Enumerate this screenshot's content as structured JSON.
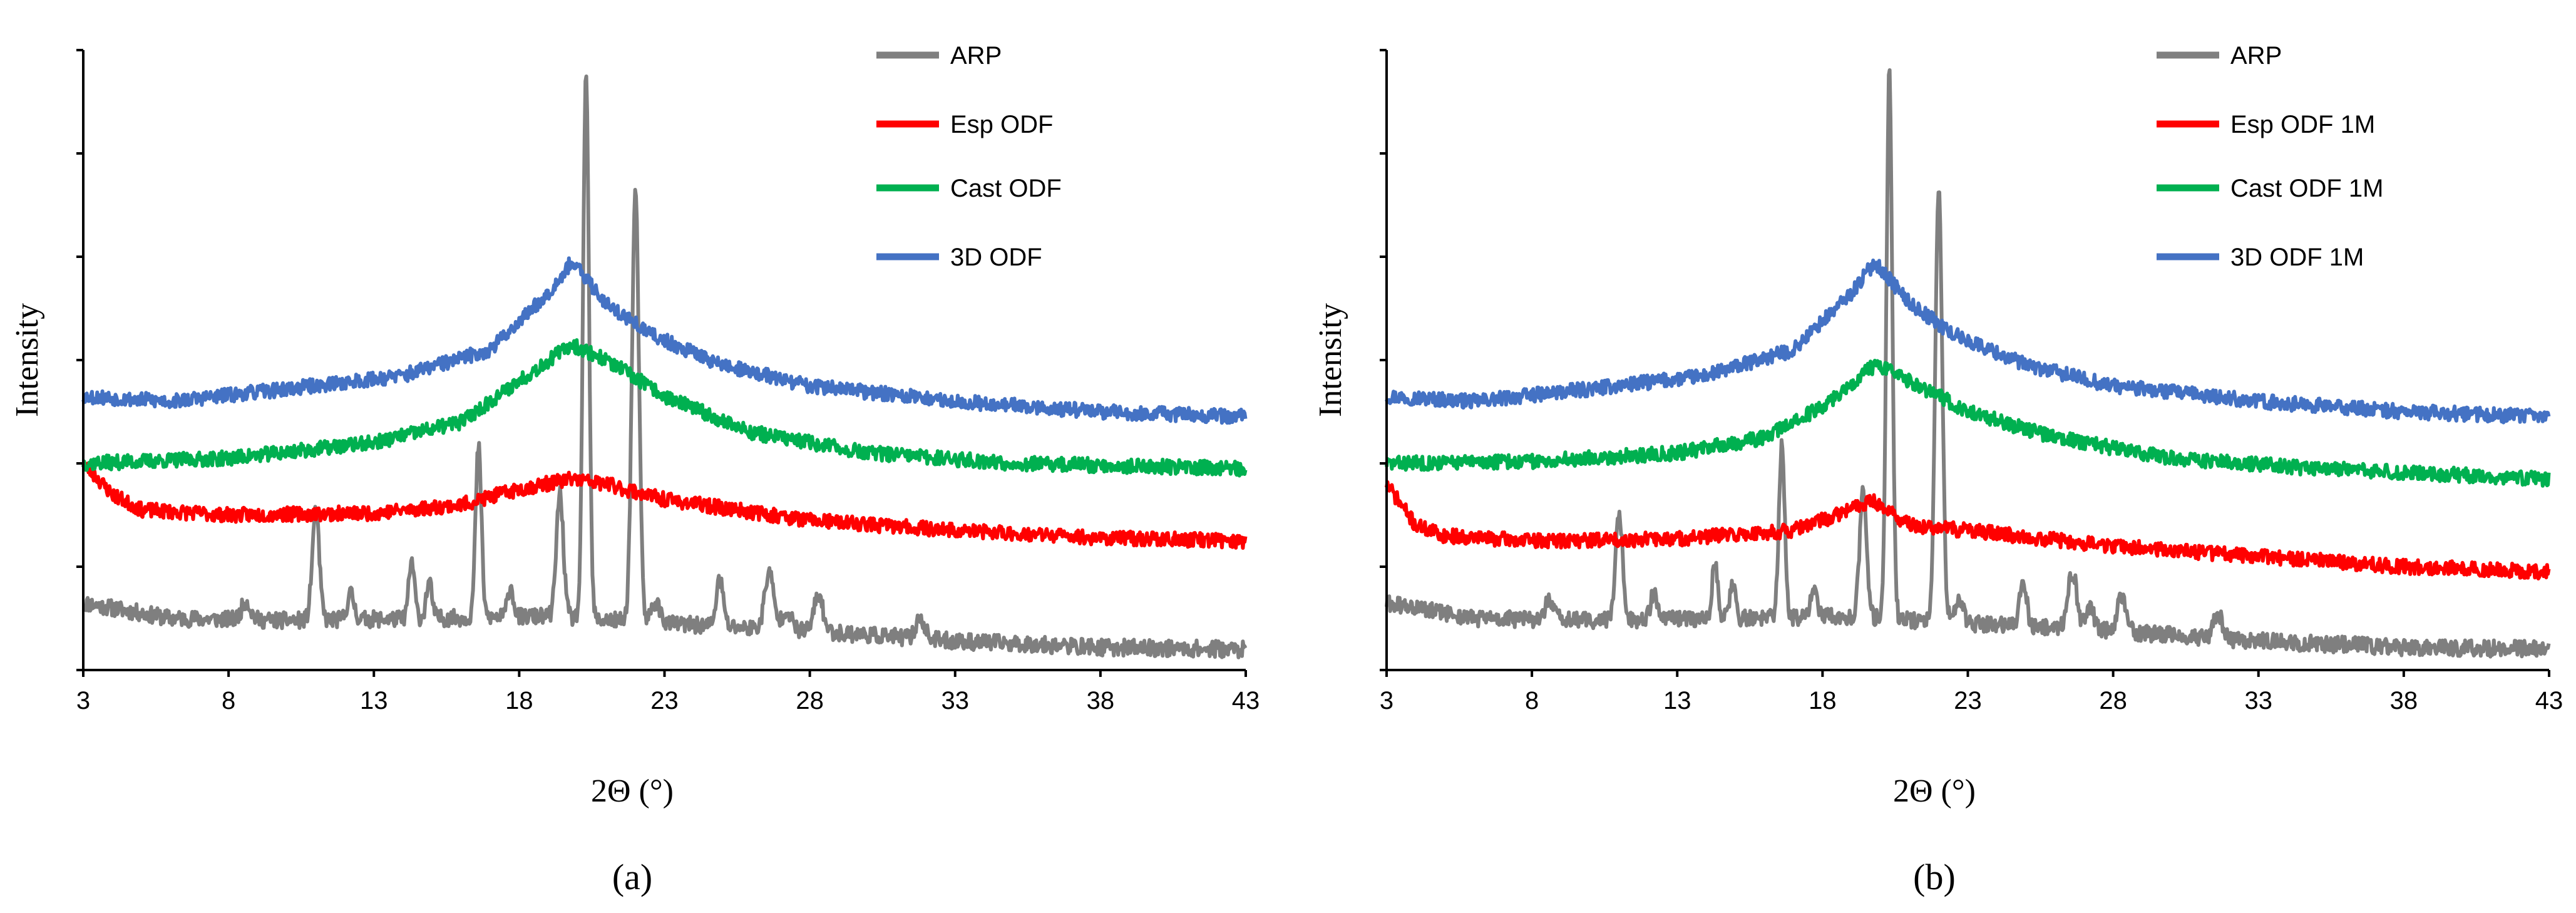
{
  "chart_data": [
    {
      "type": "line",
      "panel_label": "(a)",
      "xlabel": "2Θ (°)",
      "ylabel": "Intensity",
      "xlim": [
        3,
        43
      ],
      "ylim": [
        0,
        6
      ],
      "xticks": [
        3,
        8,
        13,
        18,
        23,
        28,
        33,
        38,
        43
      ],
      "yticks_shown": false,
      "legend_position": "top-right",
      "series": [
        {
          "name": "ARP",
          "color": "#7f7f7f",
          "noise": 0.08,
          "seed": 11,
          "baseline": [
            [
              3,
              0.65
            ],
            [
              6,
              0.5
            ],
            [
              10,
              0.48
            ],
            [
              15,
              0.5
            ],
            [
              19,
              0.52
            ],
            [
              23,
              0.45
            ],
            [
              28,
              0.38
            ],
            [
              33,
              0.28
            ],
            [
              38,
              0.22
            ],
            [
              43,
              0.2
            ]
          ],
          "peaks": [
            [
              8.6,
              0.18,
              0.15
            ],
            [
              11.0,
              1.05,
              0.12
            ],
            [
              12.2,
              0.25,
              0.12
            ],
            [
              14.3,
              0.55,
              0.1
            ],
            [
              14.9,
              0.35,
              0.1
            ],
            [
              16.6,
              1.65,
              0.1
            ],
            [
              17.7,
              0.3,
              0.1
            ],
            [
              19.4,
              1.2,
              0.12
            ],
            [
              20.3,
              5.3,
              0.1
            ],
            [
              22.0,
              4.15,
              0.12
            ],
            [
              22.7,
              0.2,
              0.15
            ],
            [
              24.9,
              0.45,
              0.12
            ],
            [
              26.6,
              0.55,
              0.15
            ],
            [
              27.2,
              0.2,
              0.15
            ],
            [
              28.3,
              0.35,
              0.15
            ],
            [
              31.8,
              0.2,
              0.15
            ]
          ]
        },
        {
          "name": "Esp ODF",
          "color": "#ff0000",
          "noise": 0.07,
          "seed": 23,
          "baseline": [
            [
              3,
              2.0
            ],
            [
              4,
              1.7
            ],
            [
              5,
              1.55
            ],
            [
              8,
              1.5
            ],
            [
              13,
              1.52
            ],
            [
              16,
              1.6
            ],
            [
              18,
              1.75
            ],
            [
              19.8,
              1.85
            ],
            [
              21,
              1.8
            ],
            [
              23,
              1.65
            ],
            [
              28,
              1.45
            ],
            [
              33,
              1.35
            ],
            [
              38,
              1.28
            ],
            [
              43,
              1.25
            ]
          ],
          "peaks": []
        },
        {
          "name": "Cast ODF",
          "color": "#00b050",
          "noise": 0.07,
          "seed": 37,
          "baseline": [
            [
              3,
              2.0
            ],
            [
              8,
              2.05
            ],
            [
              13,
              2.2
            ],
            [
              16,
              2.4
            ],
            [
              18,
              2.8
            ],
            [
              19.8,
              3.15
            ],
            [
              21,
              3.0
            ],
            [
              23,
              2.65
            ],
            [
              26,
              2.3
            ],
            [
              30,
              2.1
            ],
            [
              35,
              2.0
            ],
            [
              43,
              1.95
            ]
          ],
          "peaks": []
        },
        {
          "name": "3D ODF",
          "color": "#4472c4",
          "noise": 0.07,
          "seed": 53,
          "baseline": [
            [
              3,
              2.65
            ],
            [
              6,
              2.6
            ],
            [
              10,
              2.72
            ],
            [
              14,
              2.85
            ],
            [
              17,
              3.1
            ],
            [
              19.0,
              3.65
            ],
            [
              19.8,
              3.95
            ],
            [
              21,
              3.55
            ],
            [
              22.5,
              3.25
            ],
            [
              25,
              2.95
            ],
            [
              28,
              2.75
            ],
            [
              33,
              2.6
            ],
            [
              38,
              2.5
            ],
            [
              43,
              2.45
            ]
          ],
          "peaks": []
        }
      ]
    },
    {
      "type": "line",
      "panel_label": "(b)",
      "xlabel": "2Θ (°)",
      "ylabel": "Intensity",
      "xlim": [
        3,
        43
      ],
      "ylim": [
        0,
        6
      ],
      "xticks": [
        3,
        8,
        13,
        18,
        23,
        28,
        33,
        38,
        43
      ],
      "yticks_shown": false,
      "legend_position": "top-right",
      "series": [
        {
          "name": "ARP",
          "color": "#7f7f7f",
          "noise": 0.08,
          "seed": 61,
          "baseline": [
            [
              3,
              0.65
            ],
            [
              6,
              0.5
            ],
            [
              10,
              0.48
            ],
            [
              15,
              0.5
            ],
            [
              19,
              0.52
            ],
            [
              23,
              0.45
            ],
            [
              28,
              0.38
            ],
            [
              33,
              0.28
            ],
            [
              38,
              0.22
            ],
            [
              43,
              0.2
            ]
          ],
          "peaks": [
            [
              8.6,
              0.18,
              0.15
            ],
            [
              11.0,
              1.05,
              0.12
            ],
            [
              12.2,
              0.25,
              0.12
            ],
            [
              14.3,
              0.55,
              0.1
            ],
            [
              14.9,
              0.35,
              0.1
            ],
            [
              16.6,
              1.65,
              0.1
            ],
            [
              17.7,
              0.3,
              0.1
            ],
            [
              19.4,
              1.2,
              0.12
            ],
            [
              20.3,
              5.3,
              0.1
            ],
            [
              22.0,
              4.15,
              0.12
            ],
            [
              22.7,
              0.2,
              0.15
            ],
            [
              24.9,
              0.45,
              0.12
            ],
            [
              26.6,
              0.55,
              0.15
            ],
            [
              27.2,
              0.2,
              0.15
            ],
            [
              28.3,
              0.35,
              0.15
            ],
            [
              31.6,
              0.25,
              0.15
            ]
          ]
        },
        {
          "name": "Esp ODF 1M",
          "color": "#ff0000",
          "noise": 0.07,
          "seed": 71,
          "baseline": [
            [
              3,
              1.8
            ],
            [
              4,
              1.4
            ],
            [
              5,
              1.3
            ],
            [
              8,
              1.25
            ],
            [
              13,
              1.27
            ],
            [
              17,
              1.35
            ],
            [
              18.5,
              1.5
            ],
            [
              19.7,
              1.65
            ],
            [
              21,
              1.4
            ],
            [
              23,
              1.35
            ],
            [
              28,
              1.2
            ],
            [
              33,
              1.1
            ],
            [
              38,
              1.0
            ],
            [
              43,
              0.95
            ]
          ],
          "peaks": []
        },
        {
          "name": "Cast ODF 1M",
          "color": "#00b050",
          "noise": 0.07,
          "seed": 83,
          "baseline": [
            [
              3,
              2.0
            ],
            [
              8,
              2.02
            ],
            [
              13,
              2.1
            ],
            [
              16,
              2.25
            ],
            [
              18,
              2.55
            ],
            [
              19.8,
              2.95
            ],
            [
              21,
              2.8
            ],
            [
              23,
              2.5
            ],
            [
              26,
              2.25
            ],
            [
              30,
              2.05
            ],
            [
              35,
              1.95
            ],
            [
              43,
              1.85
            ]
          ],
          "peaks": []
        },
        {
          "name": "3D ODF 1M",
          "color": "#4472c4",
          "noise": 0.07,
          "seed": 97,
          "baseline": [
            [
              3,
              2.65
            ],
            [
              6,
              2.6
            ],
            [
              10,
              2.72
            ],
            [
              14,
              2.85
            ],
            [
              17,
              3.1
            ],
            [
              19.0,
              3.65
            ],
            [
              19.8,
              3.95
            ],
            [
              21,
              3.55
            ],
            [
              22.5,
              3.25
            ],
            [
              25,
              2.95
            ],
            [
              28,
              2.75
            ],
            [
              33,
              2.6
            ],
            [
              38,
              2.5
            ],
            [
              43,
              2.45
            ]
          ],
          "peaks": []
        }
      ]
    }
  ]
}
